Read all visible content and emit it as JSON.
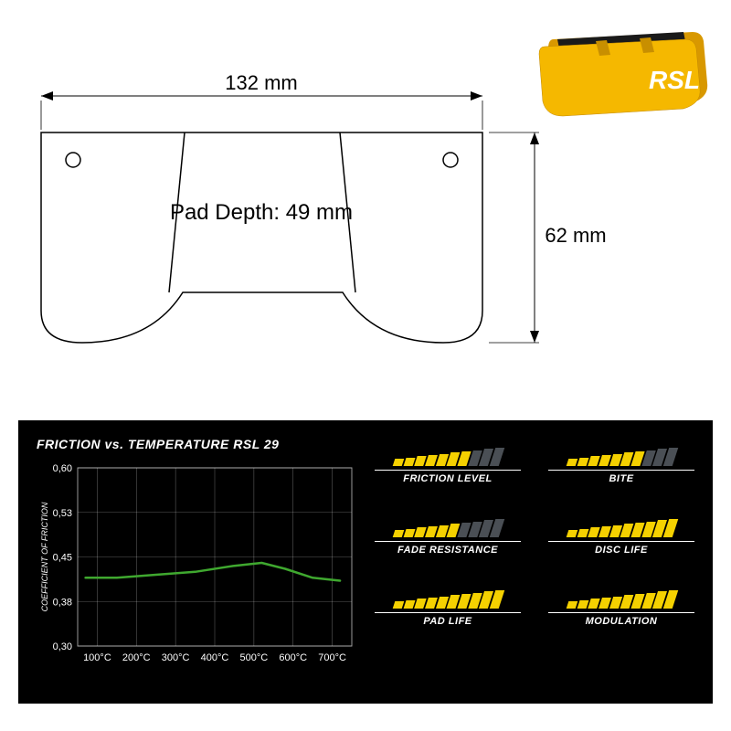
{
  "product": {
    "logo_text": "RSL",
    "body_color": "#f5b800",
    "shadow_color": "#d89800",
    "friction_color": "#1a1a1a",
    "logo_color": "#ffffff"
  },
  "drawing": {
    "width_label": "132 mm",
    "height_label": "62 mm",
    "depth_label": "Pad Depth: 49 mm",
    "stroke": "#000000",
    "stroke_width": 1.2
  },
  "chart": {
    "title": "FRICTION vs. TEMPERATURE RSL 29",
    "y_label": "COEFFICIENT OF FRICTION",
    "y_ticks": [
      "0,30",
      "0,38",
      "0,45",
      "0,53",
      "0,60"
    ],
    "y_min": 0.3,
    "y_max": 0.6,
    "x_ticks": [
      "100°C",
      "200°C",
      "300°C",
      "400°C",
      "500°C",
      "600°C",
      "700°C"
    ],
    "x_min": 50,
    "x_max": 750,
    "line_color": "#3fa82f",
    "grid_color": "#ffffff",
    "grid_opacity": 0.35,
    "series": [
      {
        "x": 70,
        "y": 0.415
      },
      {
        "x": 150,
        "y": 0.415
      },
      {
        "x": 250,
        "y": 0.42
      },
      {
        "x": 350,
        "y": 0.425
      },
      {
        "x": 450,
        "y": 0.435
      },
      {
        "x": 520,
        "y": 0.44
      },
      {
        "x": 580,
        "y": 0.43
      },
      {
        "x": 650,
        "y": 0.415
      },
      {
        "x": 720,
        "y": 0.41
      }
    ]
  },
  "ratings": {
    "max_bars": 10,
    "bar_min_h": 8,
    "bar_max_h": 20,
    "active_color": "#f5d100",
    "inactive_color": "#4a4f55",
    "items": [
      {
        "label": "FRICTION LEVEL",
        "value": 7
      },
      {
        "label": "BITE",
        "value": 7
      },
      {
        "label": "FADE RESISTANCE",
        "value": 6
      },
      {
        "label": "DISC LIFE",
        "value": 10
      },
      {
        "label": "PAD LIFE",
        "value": 10
      },
      {
        "label": "MODULATION",
        "value": 10
      }
    ]
  }
}
